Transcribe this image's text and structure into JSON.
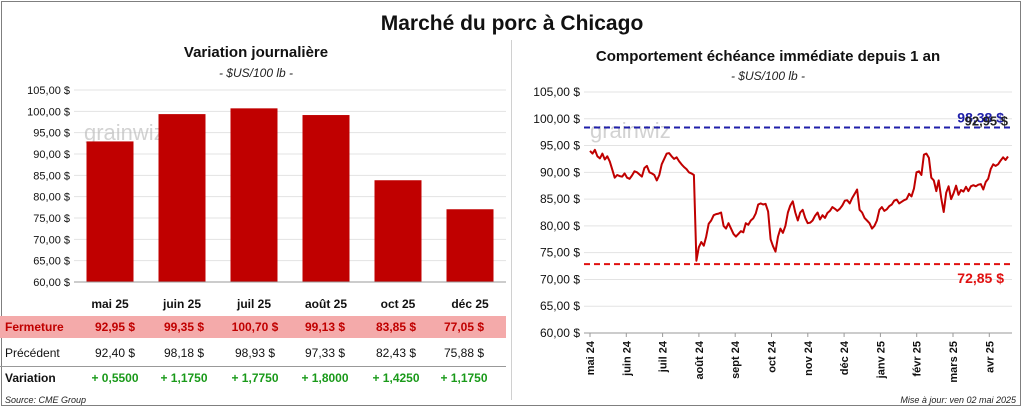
{
  "main_title": "Marché du porc à Chicago",
  "left": {
    "title": "Variation journalière",
    "unit": "- $US/100 lb -",
    "chart_data": {
      "type": "bar",
      "categories": [
        "mai 25",
        "juin 25",
        "juil 25",
        "août 25",
        "oct 25",
        "déc 25"
      ],
      "values": [
        92.95,
        99.35,
        100.7,
        99.13,
        83.85,
        77.05
      ],
      "ylim": [
        60,
        105
      ],
      "yticks": [
        "60,00 $",
        "65,00 $",
        "70,00 $",
        "75,00 $",
        "80,00 $",
        "85,00 $",
        "90,00 $",
        "95,00 $",
        "100,00 $",
        "105,00 $"
      ],
      "color": "#c00000"
    },
    "table": {
      "close_label": "Fermeture",
      "close": [
        "92,95 $",
        "99,35 $",
        "100,70 $",
        "99,13 $",
        "83,85 $",
        "77,05 $"
      ],
      "prev_label": "Précédent",
      "prev": [
        "92,40 $",
        "98,18 $",
        "98,93 $",
        "97,33 $",
        "82,43 $",
        "75,88 $"
      ],
      "var_label": "Variation",
      "var": [
        "+ 0,5500",
        "+ 1,1750",
        "+ 1,7750",
        "+ 1,8000",
        "+ 1,4250",
        "+ 1,1750"
      ]
    }
  },
  "right": {
    "title": "Comportement échéance immédiate depuis 1 an",
    "unit": "- $US/100 lb -",
    "chart_data": {
      "type": "line",
      "x_labels": [
        "mai 24",
        "juin 24",
        "juil 24",
        "août 24",
        "sept 24",
        "oct 24",
        "nov 24",
        "déc 24",
        "janv 25",
        "févr 25",
        "mars 25",
        "avr 25"
      ],
      "ylim": [
        60,
        105
      ],
      "yticks": [
        "60,00 $",
        "65,00 $",
        "70,00 $",
        "75,00 $",
        "80,00 $",
        "85,00 $",
        "90,00 $",
        "95,00 $",
        "100,00 $",
        "105,00 $"
      ],
      "series": [
        {
          "values": [
            94,
            93.5,
            94.2,
            93,
            92.6,
            93.5,
            92.4,
            93,
            92,
            90.5,
            89,
            89.5,
            89.3,
            89.2,
            89.8,
            89,
            88.8,
            89.4,
            90.2,
            90,
            89.6,
            89.2,
            90.8,
            91.2,
            90,
            89.8,
            89.5,
            88.5,
            89.5,
            91.5,
            92.5,
            93.5,
            93.6,
            93,
            92.5,
            92.8,
            92.1,
            91.5,
            91,
            90.6,
            90,
            89.8,
            89.5,
            73.5,
            76,
            77,
            76.3,
            78,
            80.4,
            81,
            82,
            82.2,
            82.3,
            82.5,
            80,
            79.5,
            80.5,
            79.5,
            78.5,
            78,
            78.5,
            79,
            78.8,
            80.5,
            80.2,
            81,
            81.4,
            82.3,
            84,
            84.2,
            84,
            84.1,
            82.7,
            77.5,
            76.2,
            75.2,
            78,
            79.5,
            78.7,
            80,
            82.5,
            83.8,
            84.6,
            82.5,
            81,
            82.5,
            83,
            81.5,
            80.5,
            80.6,
            81,
            81.9,
            82.5,
            81.2,
            82,
            81.5,
            82.4,
            82.8,
            83.5,
            83.2,
            82.8,
            83.2,
            83.8,
            84.7,
            84.8,
            84.2,
            85.2,
            86,
            86.8,
            83,
            82.5,
            81.5,
            81,
            80.5,
            79.5,
            80,
            81,
            83,
            83.5,
            82.8,
            83.1,
            83.7,
            84,
            84.7,
            84.9,
            84.2,
            84.5,
            84.8,
            85,
            86,
            85.5,
            87,
            90,
            90.2,
            89.5,
            93.3,
            93.5,
            92.7,
            89,
            88.5,
            86.5,
            88.5,
            85.2,
            82.6,
            86.2,
            87.4,
            85,
            86.1,
            87.5,
            85.8,
            86.7,
            86.4,
            87.3,
            86.5,
            87.4,
            87.6,
            87.4,
            87.7,
            87.8,
            86.8,
            88.2,
            88.8,
            90.6,
            91.5,
            91.2,
            91.5,
            92.2,
            92.8,
            92.3,
            92.95
          ]
        }
      ],
      "hi_label": "98,38 $",
      "hi_value": 98.38,
      "hi_label2": "92,95 $",
      "lo_label": "72,85 $",
      "lo_value": 72.85
    }
  },
  "watermark": "grainwiz",
  "footer_source": "Source: CME Group",
  "footer_update": "Mise à jour: ven 02 mai 2025"
}
